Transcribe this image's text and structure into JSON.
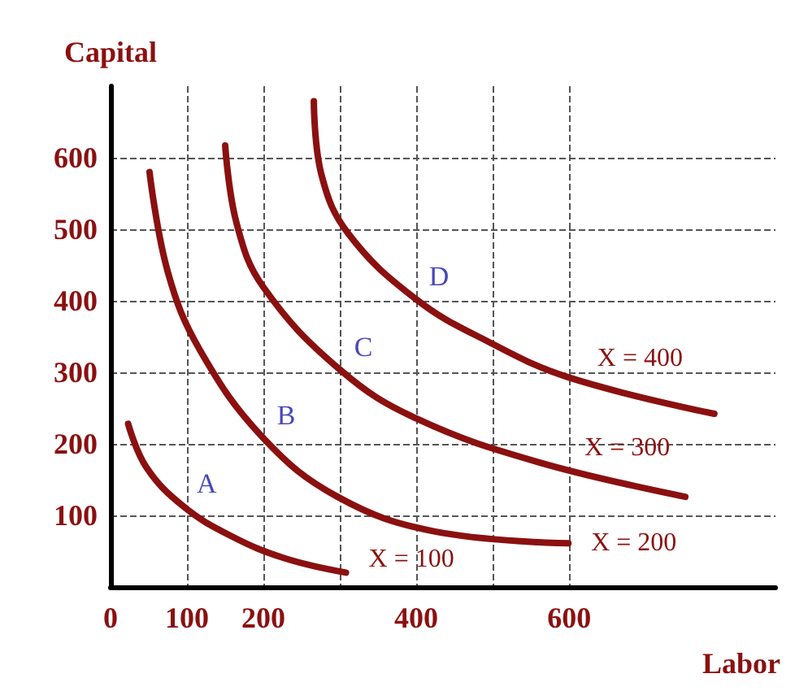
{
  "chart_data": {
    "type": "line",
    "xlabel": "Labor",
    "ylabel": "Capital",
    "xlim": [
      0,
      870
    ],
    "ylim": [
      0,
      700
    ],
    "xticks": [
      0,
      100,
      200,
      {
        "value": 300,
        "label": null
      },
      400,
      {
        "value": 500,
        "label": null
      },
      600
    ],
    "yticks": [
      100,
      200,
      300,
      400,
      500,
      600
    ],
    "grid": true,
    "legend": false,
    "marker": "none",
    "line_style": "solid",
    "series": [
      {
        "name": "X = 100",
        "color": "#8b1010",
        "x": [
          23,
          47,
          96,
          158,
          228,
          308
        ],
        "values": [
          228,
          167,
          112,
          71,
          40,
          20
        ]
      },
      {
        "name": "X = 200",
        "color": "#8b1010",
        "x": [
          51,
          75,
          117,
          200,
          297,
          422,
          599
        ],
        "values": [
          580,
          440,
          331,
          208,
          126,
          78,
          61
        ]
      },
      {
        "name": "X = 300",
        "color": "#8b1010",
        "x": [
          150,
          165,
          200,
          301,
          401,
          561,
          752
        ],
        "values": [
          617,
          508,
          419,
          303,
          235,
          174,
          126
        ]
      },
      {
        "name": "X = 400",
        "color": "#8b1010",
        "x": [
          266,
          276,
          311,
          400,
          492,
          599,
          790
        ],
        "values": [
          679,
          576,
          494,
          402,
          344,
          293,
          242
        ]
      }
    ],
    "annotations": [
      {
        "text": "A",
        "x": 96,
        "y": 112
      },
      {
        "text": "B",
        "x": 200,
        "y": 208
      },
      {
        "text": "C",
        "x": 301,
        "y": 303
      },
      {
        "text": "D",
        "x": 400,
        "y": 402
      }
    ]
  }
}
